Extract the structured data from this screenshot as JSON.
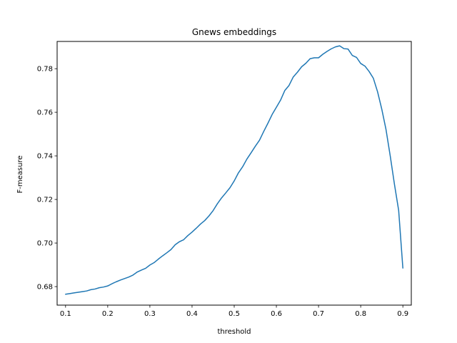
{
  "chart_data": {
    "type": "line",
    "title": "Gnews embeddings",
    "xlabel": "threshold",
    "ylabel": "F-measure",
    "xlim": [
      0.08,
      0.92
    ],
    "ylim": [
      0.6715,
      0.7925
    ],
    "xticks": [
      0.1,
      0.2,
      0.3,
      0.4,
      0.5,
      0.6,
      0.7,
      0.8,
      0.9
    ],
    "xtick_labels": [
      "0.1",
      "0.2",
      "0.3",
      "0.4",
      "0.5",
      "0.6",
      "0.7",
      "0.8",
      "0.9"
    ],
    "yticks": [
      0.68,
      0.7,
      0.72,
      0.74,
      0.76,
      0.78
    ],
    "ytick_labels": [
      "0.68",
      "0.70",
      "0.72",
      "0.74",
      "0.76",
      "0.78"
    ],
    "grid": false,
    "legend": false,
    "series": [
      {
        "name": "F-measure",
        "color": "#1f77b4",
        "x": [
          0.1,
          0.11,
          0.12,
          0.13,
          0.14,
          0.15,
          0.16,
          0.17,
          0.18,
          0.19,
          0.2,
          0.21,
          0.22,
          0.23,
          0.24,
          0.25,
          0.26,
          0.27,
          0.28,
          0.29,
          0.3,
          0.31,
          0.32,
          0.33,
          0.34,
          0.35,
          0.36,
          0.37,
          0.38,
          0.39,
          0.4,
          0.41,
          0.42,
          0.43,
          0.44,
          0.45,
          0.46,
          0.47,
          0.48,
          0.49,
          0.5,
          0.51,
          0.52,
          0.53,
          0.54,
          0.55,
          0.56,
          0.57,
          0.58,
          0.59,
          0.6,
          0.61,
          0.62,
          0.63,
          0.64,
          0.65,
          0.66,
          0.67,
          0.68,
          0.69,
          0.7,
          0.71,
          0.72,
          0.73,
          0.74,
          0.75,
          0.76,
          0.77,
          0.78,
          0.79,
          0.8,
          0.81,
          0.82,
          0.83,
          0.84,
          0.85,
          0.86,
          0.87,
          0.88,
          0.89,
          0.9
        ],
        "y": [
          0.6765,
          0.6768,
          0.6771,
          0.6774,
          0.6777,
          0.678,
          0.6786,
          0.6789,
          0.6795,
          0.6798,
          0.6803,
          0.6813,
          0.6822,
          0.683,
          0.6837,
          0.6844,
          0.6853,
          0.6867,
          0.6876,
          0.6884,
          0.6899,
          0.691,
          0.6926,
          0.6941,
          0.6955,
          0.697,
          0.6992,
          0.7006,
          0.7015,
          0.7034,
          0.705,
          0.7068,
          0.7087,
          0.7103,
          0.7124,
          0.7149,
          0.718,
          0.7207,
          0.723,
          0.7254,
          0.7285,
          0.7322,
          0.735,
          0.7385,
          0.7414,
          0.7444,
          0.7472,
          0.7512,
          0.755,
          0.759,
          0.7623,
          0.7656,
          0.77,
          0.7723,
          0.7762,
          0.7784,
          0.7809,
          0.7825,
          0.7846,
          0.785,
          0.785,
          0.7866,
          0.7879,
          0.7891,
          0.79,
          0.7905,
          0.7892,
          0.789,
          0.7861,
          0.7852,
          0.7824,
          0.7812,
          0.7787,
          0.7756,
          0.7694,
          0.7614,
          0.7521,
          0.74,
          0.727,
          0.715,
          0.6885
        ]
      }
    ]
  }
}
